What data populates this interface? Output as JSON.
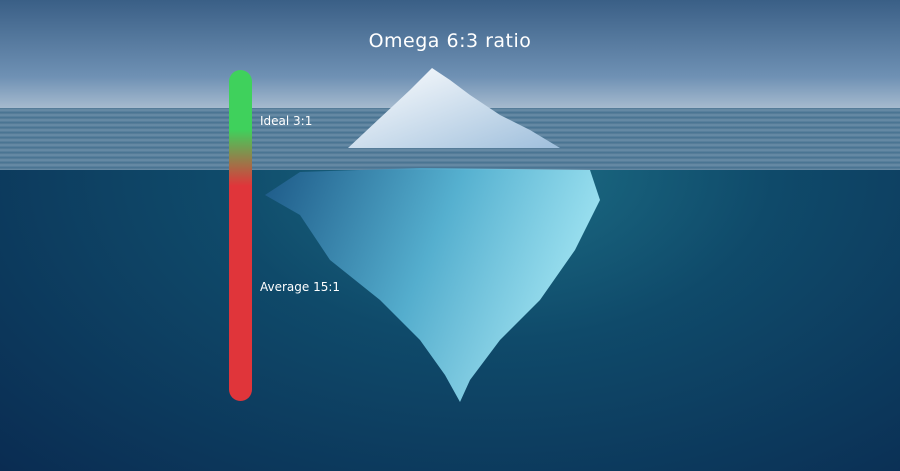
{
  "title": "Omega 6:3 ratio",
  "scale": {
    "labels": [
      {
        "text": "Ideal 3:1",
        "color": "#3fd15c"
      },
      {
        "text": "Average 15:1",
        "color": "#e0353a"
      }
    ]
  },
  "image": {
    "subject": "iceberg",
    "icon": "iceberg-illustration"
  }
}
